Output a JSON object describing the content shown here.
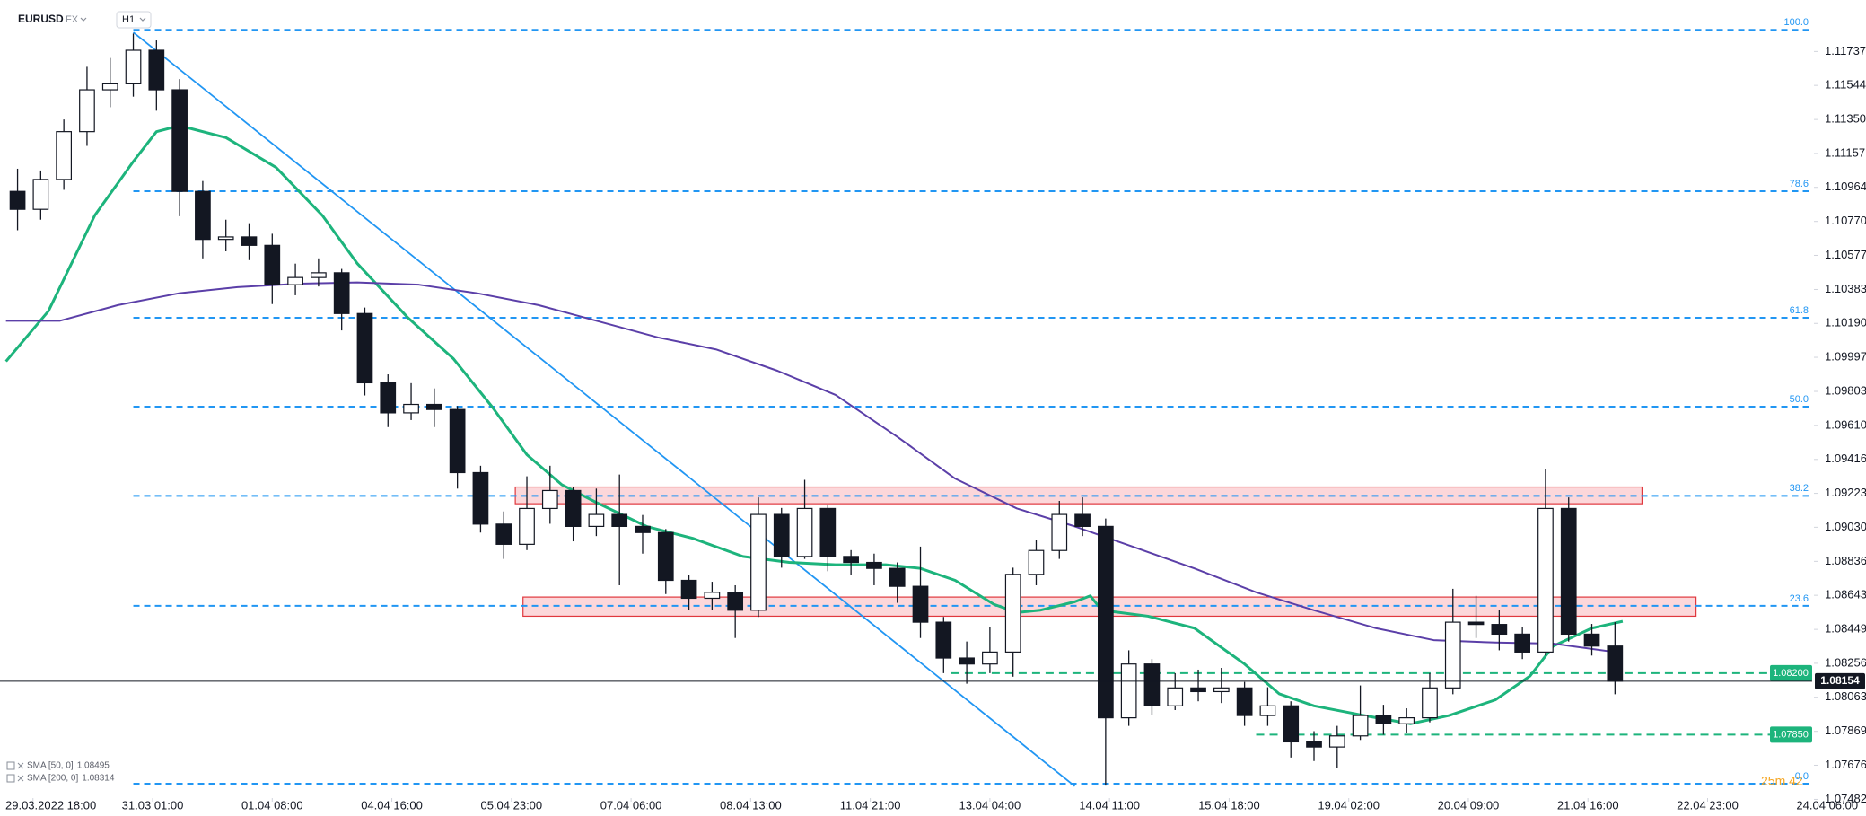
{
  "header": {
    "symbol": "EURUSD",
    "market": "FX",
    "timeframe": "H1"
  },
  "chart_data": {
    "type": "candlestick",
    "x": [
      3,
      9,
      15,
      21,
      27,
      33,
      39,
      45,
      51,
      57,
      63,
      69,
      75,
      81,
      87,
      93,
      99,
      105,
      111,
      117,
      123,
      129,
      135,
      141,
      147,
      153,
      159,
      165,
      171,
      177,
      183,
      189,
      195,
      201,
      207,
      213,
      219,
      225,
      231,
      237,
      243,
      249,
      255,
      261,
      267,
      273,
      279,
      285,
      291,
      297,
      303,
      309,
      315,
      321,
      327,
      333,
      339,
      345,
      351,
      357,
      363,
      369,
      375,
      381,
      387,
      393,
      399,
      405,
      411,
      417
    ],
    "open": [
      1.10941,
      1.10839,
      1.11009,
      1.11281,
      1.11519,
      1.11553,
      1.11744,
      1.11519,
      1.10941,
      1.10668,
      1.10682,
      1.10634,
      1.1041,
      1.10451,
      1.10478,
      1.10246,
      1.09852,
      1.09681,
      1.09729,
      1.097,
      1.09341,
      1.09048,
      1.08933,
      1.09137,
      1.09239,
      1.09035,
      1.09103,
      1.09035,
      1.09,
      1.08728,
      1.08626,
      1.0866,
      1.08558,
      1.09103,
      1.08864,
      1.09137,
      1.08864,
      1.0883,
      1.08796,
      1.08694,
      1.0849,
      1.08286,
      1.08252,
      1.0832,
      1.08762,
      1.08898,
      1.09103,
      1.09035,
      1.07946,
      1.08252,
      1.08014,
      1.08116,
      1.08095,
      1.08116,
      1.07959,
      1.08014,
      1.07809,
      1.0778,
      1.07843,
      1.07959,
      1.07912,
      1.07946,
      1.08116,
      1.0849,
      1.08477,
      1.08422,
      1.0832,
      1.09137,
      1.08422,
      1.08354
    ],
    "high": [
      1.1107,
      1.1106,
      1.1135,
      1.1165,
      1.117,
      1.11839,
      1.118,
      1.1158,
      1.11,
      1.1078,
      1.1076,
      1.107,
      1.1053,
      1.1056,
      1.105,
      1.1028,
      1.099,
      1.0985,
      1.0982,
      1.0972,
      1.0938,
      1.0912,
      1.0932,
      1.0938,
      1.0926,
      1.0925,
      1.0933,
      1.091,
      1.0902,
      1.0876,
      1.0872,
      1.087,
      1.092,
      1.0914,
      1.093,
      1.0916,
      1.089,
      1.0888,
      1.0883,
      1.0892,
      1.0852,
      1.0838,
      1.0846,
      1.088,
      1.0896,
      1.0918,
      1.092,
      1.0908,
      1.0833,
      1.0828,
      1.082,
      1.0822,
      1.0823,
      1.0815,
      1.0812,
      1.0804,
      1.0787,
      1.079,
      1.0813,
      1.0802,
      1.08,
      1.082,
      1.0868,
      1.0864,
      1.0856,
      1.0846,
      1.0936,
      1.092,
      1.0848,
      1.0849
    ],
    "low": [
      1.1072,
      1.1078,
      1.1095,
      1.112,
      1.1142,
      1.1148,
      1.114,
      1.108,
      1.1056,
      1.106,
      1.1055,
      1.103,
      1.1035,
      1.104,
      1.1015,
      1.0978,
      1.096,
      1.0964,
      1.096,
      1.0925,
      1.09,
      1.0885,
      1.089,
      1.0905,
      1.0895,
      1.0898,
      1.087,
      1.0888,
      1.0865,
      1.0856,
      1.0856,
      1.084,
      1.0852,
      1.088,
      1.0885,
      1.0878,
      1.0876,
      1.087,
      1.086,
      1.084,
      1.082,
      1.0814,
      1.082,
      1.0818,
      1.087,
      1.0885,
      1.0898,
      1.0756,
      1.079,
      1.0796,
      1.0799,
      1.0804,
      1.0803,
      1.079,
      1.079,
      1.0772,
      1.077,
      1.0766,
      1.0782,
      1.0785,
      1.0786,
      1.0792,
      1.0808,
      1.084,
      1.0833,
      1.0828,
      1.083,
      1.0838,
      1.083,
      1.0808
    ],
    "close": [
      1.10839,
      1.11009,
      1.11281,
      1.11519,
      1.11553,
      1.11744,
      1.11519,
      1.10941,
      1.10668,
      1.10682,
      1.10634,
      1.1041,
      1.10451,
      1.10478,
      1.10246,
      1.09852,
      1.09681,
      1.09729,
      1.097,
      1.09341,
      1.09048,
      1.08933,
      1.09137,
      1.09239,
      1.09035,
      1.09103,
      1.09035,
      1.09,
      1.08728,
      1.08626,
      1.0866,
      1.08558,
      1.09103,
      1.08864,
      1.09137,
      1.08864,
      1.0883,
      1.08796,
      1.08694,
      1.0849,
      1.08286,
      1.08252,
      1.0832,
      1.08762,
      1.08898,
      1.09103,
      1.09035,
      1.07946,
      1.08252,
      1.08014,
      1.08116,
      1.08095,
      1.08116,
      1.07959,
      1.08014,
      1.07809,
      1.0778,
      1.07843,
      1.07959,
      1.07912,
      1.07946,
      1.08116,
      1.0849,
      1.08477,
      1.08422,
      1.0832,
      1.09137,
      1.08422,
      1.08354,
      1.08154
    ],
    "up_color": "#ffffff",
    "down_color": "#131722",
    "xlim": [
      -1.55,
      468.1
    ],
    "xticks": [
      {
        "value": 7,
        "label": "29.03.2022 18:00"
      },
      {
        "value": 38,
        "label": "31.03 01:00"
      },
      {
        "value": 69,
        "label": "01.04 08:00"
      },
      {
        "value": 100,
        "label": "04.04 16:00"
      },
      {
        "value": 131,
        "label": "05.04 23:00"
      },
      {
        "value": 162,
        "label": "07.04 06:00"
      },
      {
        "value": 193,
        "label": "08.04 13:00"
      },
      {
        "value": 224,
        "label": "11.04 21:00"
      },
      {
        "value": 255,
        "label": "13.04 04:00"
      },
      {
        "value": 286,
        "label": "14.04 11:00"
      },
      {
        "value": 317,
        "label": "15.04 18:00"
      },
      {
        "value": 348,
        "label": "19.04 02:00"
      },
      {
        "value": 379,
        "label": "20.04 09:00"
      },
      {
        "value": 410,
        "label": "21.04 16:00"
      },
      {
        "value": 441,
        "label": "22.04 23:00"
      },
      {
        "value": 472,
        "label": "24.04 06:00"
      }
    ],
    "ylim": [
      1.07469,
      1.1203
    ],
    "yticks": [
      1.11737,
      1.11544,
      {
        "value": 1.1135,
        "label": "1.11350"
      },
      1.11157,
      1.10964,
      {
        "value": 1.1077,
        "label": "1.10770"
      },
      1.10577,
      1.10383,
      {
        "value": 1.1019,
        "label": "1.10190"
      },
      1.09997,
      1.09803,
      {
        "value": 1.0961,
        "label": "1.09610"
      },
      1.09416,
      1.09223,
      {
        "value": 1.0903,
        "label": "1.09030"
      },
      1.08836,
      1.08643,
      1.08449,
      1.08256,
      1.08063,
      1.07869,
      1.07676,
      1.07482
    ],
    "series": [
      {
        "name": "SMA [50, 0]",
        "last": 1.08495,
        "color": "#1db47c",
        "x": [
          0,
          11,
          23,
          33,
          39,
          45,
          57,
          70,
          82,
          91,
          104,
          116,
          126,
          135,
          144,
          153,
          166,
          178,
          191,
          203,
          215,
          228,
          237,
          246,
          256,
          262,
          268,
          277,
          281,
          284,
          296,
          308,
          321,
          330,
          339,
          352,
          364,
          374,
          386,
          395,
          401,
          411,
          419
        ],
        "values": [
          1.09974,
          1.1026,
          1.10804,
          1.11111,
          1.11281,
          1.11315,
          1.11247,
          1.11077,
          1.10804,
          1.10532,
          1.10226,
          1.09988,
          1.09715,
          1.09443,
          1.09273,
          1.09171,
          1.09035,
          1.08967,
          1.08864,
          1.0883,
          1.08817,
          1.08817,
          1.08796,
          1.08728,
          1.08592,
          1.08545,
          1.08558,
          1.08606,
          1.0864,
          1.08558,
          1.08524,
          1.08456,
          1.08252,
          1.08082,
          1.08014,
          1.07959,
          1.07912,
          1.07959,
          1.08048,
          1.08184,
          1.08354,
          1.08456,
          1.08495
        ]
      },
      {
        "name": "SMA [200, 0]",
        "last": 1.08314,
        "color": "#5b3fa8",
        "x": [
          0,
          14,
          29,
          45,
          60,
          76,
          91,
          107,
          122,
          138,
          153,
          169,
          184,
          200,
          215,
          231,
          246,
          262,
          277,
          293,
          308,
          324,
          339,
          355,
          370,
          386,
          401,
          419
        ],
        "values": [
          1.10205,
          1.10205,
          1.10294,
          1.10362,
          1.10396,
          1.10416,
          1.10423,
          1.1041,
          1.10362,
          1.10294,
          1.10205,
          1.1011,
          1.10042,
          1.0992,
          1.09783,
          1.09545,
          1.09307,
          1.09137,
          1.09035,
          1.08912,
          1.08796,
          1.0866,
          1.08558,
          1.08456,
          1.08388,
          1.08374,
          1.08368,
          1.08314
        ]
      }
    ],
    "trendline": {
      "color": "#2196f3",
      "x": [
        33,
        277
      ],
      "values": [
        1.11846,
        1.07557
      ]
    },
    "zones": [
      {
        "x": [
          132,
          424
        ],
        "values": [
          1.09164,
          1.09259
        ]
      },
      {
        "x": [
          134,
          438
        ],
        "values": [
          1.08524,
          1.08633
        ]
      }
    ],
    "fib": {
      "from": 33,
      "color": "#2196f3",
      "levels": [
        {
          "label": "100.0",
          "value": 1.1186
        },
        {
          "label": "78.6",
          "value": 1.10942
        },
        {
          "label": "61.8",
          "value": 1.10222
        },
        {
          "label": "50.0",
          "value": 1.09716
        },
        {
          "label": "38.2",
          "value": 1.09209
        },
        {
          "label": "23.6",
          "value": 1.08583
        },
        {
          "label": "0.0",
          "value": 1.07571
        }
      ]
    },
    "levels": [
      {
        "value": 1.082,
        "label": "1.08200",
        "from": 245
      },
      {
        "value": 1.0785,
        "label": "1.07850",
        "from": 324
      }
    ],
    "level_color": "#1db47c",
    "countdown": "25m 42"
  }
}
